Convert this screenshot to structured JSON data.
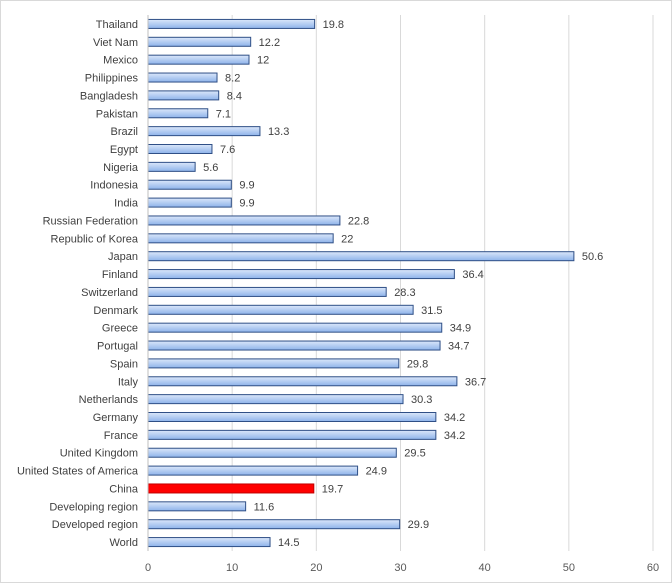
{
  "chart_data": {
    "type": "bar",
    "orientation": "horizontal",
    "title": "",
    "xlabel": "",
    "ylabel": "",
    "xlim": [
      0,
      60
    ],
    "ticks": [
      0,
      10,
      20,
      30,
      40,
      50,
      60
    ],
    "grid": true,
    "legend": "none",
    "colors": {
      "bar_fill_top": "#dbe7fa",
      "bar_fill_bottom": "#8eb3ea",
      "bar_stroke": "#2f4f86",
      "highlight_fill": "#ff0000",
      "highlight_stroke": "#c00000"
    },
    "highlight": "China",
    "categories": [
      "Thailand",
      "Viet Nam",
      "Mexico",
      "Philippines",
      "Bangladesh",
      "Pakistan",
      "Brazil",
      "Egypt",
      "Nigeria",
      "Indonesia",
      "India",
      "Russian Federation",
      "Republic of Korea",
      "Japan",
      "Finland",
      "Switzerland",
      "Denmark",
      "Greece",
      "Portugal",
      "Spain",
      "Italy",
      "Netherlands",
      "Germany",
      "France",
      "United Kingdom",
      "United States of America",
      "China",
      "Developing region",
      "Developed region",
      "World"
    ],
    "values": [
      19.8,
      12.2,
      12,
      8.2,
      8.4,
      7.1,
      13.3,
      7.6,
      5.6,
      9.9,
      9.9,
      22.8,
      22,
      50.6,
      36.4,
      28.3,
      31.5,
      34.9,
      34.7,
      29.8,
      36.7,
      30.3,
      34.2,
      34.2,
      29.5,
      24.9,
      19.7,
      11.6,
      29.9,
      14.5
    ],
    "value_labels": [
      "19.8",
      "12.2",
      "12",
      "8.2",
      "8.4",
      "7.1",
      "13.3",
      "7.6",
      "5.6",
      "9.9",
      "9.9",
      "22.8",
      "22",
      "50.6",
      "36.4",
      "28.3",
      "31.5",
      "34.9",
      "34.7",
      "29.8",
      "36.7",
      "30.3",
      "34.2",
      "34.2",
      "29.5",
      "24.9",
      "19.7",
      "11.6",
      "29.9",
      "14.5"
    ]
  }
}
